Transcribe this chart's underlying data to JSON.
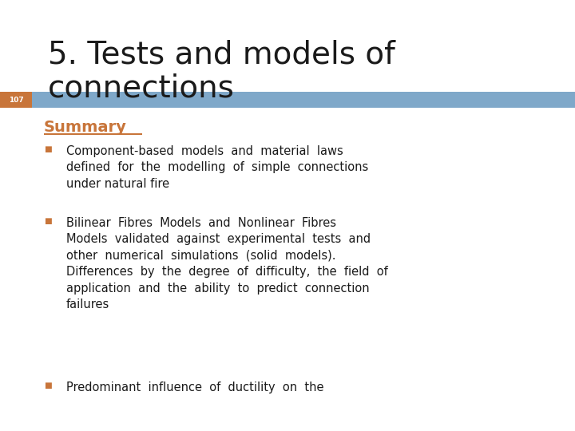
{
  "title_line1": "5. Tests and models of",
  "title_line2": "connections",
  "title_color": "#1a1a1a",
  "title_fontsize": 28,
  "slide_number": "107",
  "slide_number_color": "#ffffff",
  "slide_number_bg": "#c8753a",
  "bar_color": "#7fa8c9",
  "summary_text": "Summary",
  "summary_color": "#c8753a",
  "background_color": "#ffffff",
  "bullet_color": "#c8753a",
  "text_color": "#1a1a1a",
  "text_fontsize": 10.5,
  "summary_fontsize": 14,
  "bullet1_text": "Component-based  models  and  material  laws\ndefined  for  the  modelling  of  simple  connections\nunder natural fire",
  "bullet2_text": "Bilinear  Fibres  Models  and  Nonlinear  Fibres\nModels  validated  against  experimental  tests  and\nother  numerical  simulations  (solid  models).\nDifferences  by  the  degree  of  difficulty,  the  field  of\napplication  and  the  ability  to  predict  connection\nfailures",
  "bullet3_text": "Predominant  influence  of  ductility  on  the"
}
